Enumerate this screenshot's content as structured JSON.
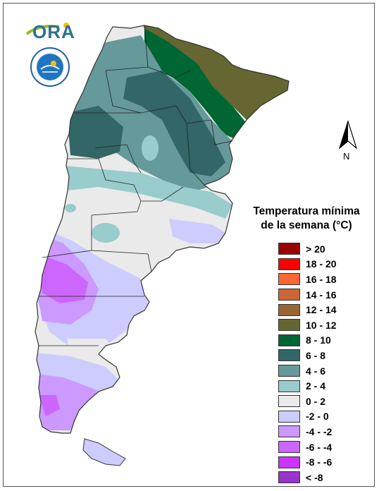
{
  "branding": {
    "logo_text": "ORA",
    "seal_text": "SERVICIO METEOROLOGICO NACIONAL ARGENTINA"
  },
  "compass": {
    "label": "N"
  },
  "legend": {
    "title_line1": "Temperatura mínima",
    "title_line2": "de la semana (°C)",
    "classes": [
      {
        "label": "> 20",
        "color": "#990000"
      },
      {
        "label": "18 - 20",
        "color": "#ff0000"
      },
      {
        "label": "16 - 18",
        "color": "#ff6633"
      },
      {
        "label": "14 - 16",
        "color": "#cc6633"
      },
      {
        "label": "12 - 14",
        "color": "#996633"
      },
      {
        "label": "10 - 12",
        "color": "#666633"
      },
      {
        "label": "8 - 10",
        "color": "#006633"
      },
      {
        "label": "6 - 8",
        "color": "#336666"
      },
      {
        "label": "4 - 6",
        "color": "#669999"
      },
      {
        "label": "2 - 4",
        "color": "#99cccc"
      },
      {
        "label": "0 - 2",
        "color": "#eaeaea"
      },
      {
        "label": "-2 - 0",
        "color": "#ccccff"
      },
      {
        "label": "-4 - -2",
        "color": "#cc99ff"
      },
      {
        "label": "-6 - -4",
        "color": "#cc66ff"
      },
      {
        "label": "-8 - -6",
        "color": "#cc33ff"
      },
      {
        "label": "< -8",
        "color": "#9933cc"
      }
    ]
  }
}
